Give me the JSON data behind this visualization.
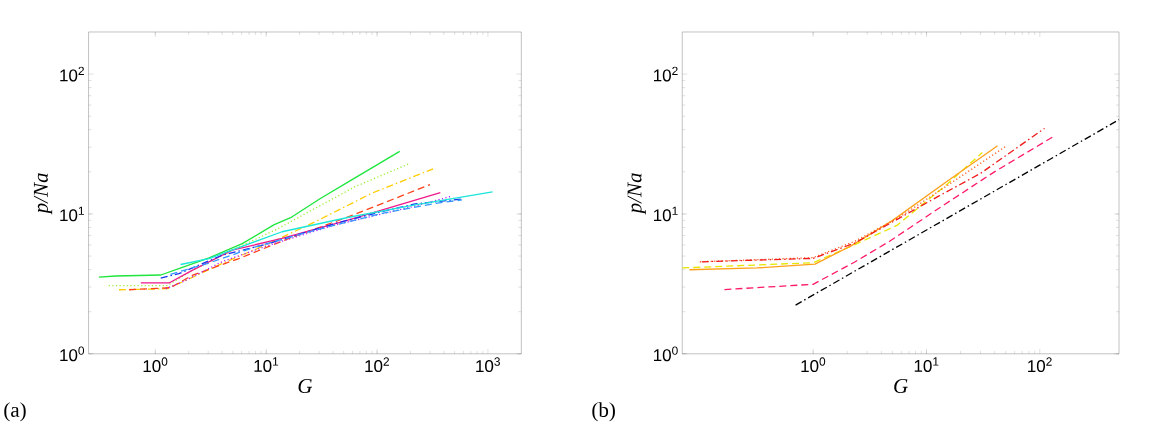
{
  "chart_data": [
    {
      "type": "line",
      "xlabel": "G",
      "ylabel": "p/Na",
      "annotations": [
        "(a)"
      ],
      "log": "xy",
      "xlim": [
        0.25,
        2000
      ],
      "ylim": [
        1,
        200
      ],
      "xticks": [
        {
          "value": 1,
          "label": "10$^{0}$"
        },
        {
          "value": 10,
          "label": "10$^{1}$"
        },
        {
          "value": 100,
          "label": "10$^{2}$"
        },
        {
          "value": 1000,
          "label": "10$^{3}$"
        }
      ],
      "yticks": [
        {
          "value": 1,
          "label": "10$^{0}$"
        },
        {
          "value": 10,
          "label": "10$^{1}$"
        },
        {
          "value": 100,
          "label": "10$^{2}$"
        }
      ],
      "series": [
        {
          "color": "#1ee63c",
          "line_style": "solid",
          "x": [
            0.31,
            0.44,
            1.12,
            1.63,
            3.05,
            6.08,
            11.7,
            16.6,
            30.8,
            59.5,
            160
          ],
          "values": [
            3.54,
            3.6,
            3.66,
            4.06,
            4.85,
            6.13,
            8.35,
            9.4,
            12.9,
            17.6,
            28.0
          ]
        },
        {
          "color": "#99f033",
          "line_style": "dotted",
          "x": [
            0.38,
            1.28,
            2.15,
            5.68,
            12.1,
            27.8,
            63.8,
            193
          ],
          "values": [
            3.07,
            3.07,
            3.95,
            5.82,
            7.67,
            11.0,
            15.7,
            22.8
          ]
        },
        {
          "color": "#ffcc00",
          "line_style": "dashdot",
          "x": [
            0.47,
            1.28,
            1.75,
            4.01,
            10.6,
            27.8,
            90.2,
            320
          ],
          "values": [
            2.87,
            2.92,
            3.26,
            4.42,
            6.15,
            8.81,
            14.1,
            21.0
          ]
        },
        {
          "color": "#ff4019",
          "line_style": "dashed",
          "x": [
            0.58,
            1.37,
            2.15,
            5.68,
            16.0,
            55.6,
            300
          ],
          "values": [
            2.87,
            2.97,
            3.64,
            4.8,
            6.68,
            9.56,
            16.2
          ]
        },
        {
          "color": "#f0198c",
          "line_style": "solid",
          "x": [
            0.74,
            1.33,
            2.15,
            4.94,
            13.9,
            55.6,
            372
          ],
          "values": [
            3.21,
            3.21,
            3.95,
            5.51,
            6.68,
            9.06,
            14.2
          ]
        },
        {
          "color": "#b31aff",
          "line_style": "dotted",
          "x": [
            1.24,
            1.75,
            4.01,
            10.6,
            42.1,
            221,
            457
          ],
          "values": [
            2.92,
            3.26,
            4.56,
            5.98,
            8.35,
            11.4,
            13.3
          ]
        },
        {
          "color": "#1a33f0",
          "line_style": "dashdot",
          "x": [
            1.12,
            1.63,
            4.01,
            10.6,
            42.1,
            111,
            221,
            583
          ],
          "values": [
            3.48,
            3.74,
            5.07,
            6.15,
            8.57,
            10.4,
            11.8,
            12.8
          ]
        },
        {
          "color": "#3399ff",
          "line_style": "dashed",
          "x": [
            1.37,
            3.05,
            8.01,
            27.8,
            111,
            335,
            583
          ],
          "values": [
            3.7,
            4.46,
            5.82,
            7.67,
            10.1,
            11.9,
            12.6
          ]
        },
        {
          "color": "#1ae6d9",
          "line_style": "solid",
          "x": [
            1.69,
            3.05,
            13.9,
            55.6,
            221,
            1100
          ],
          "values": [
            4.35,
            4.8,
            7.46,
            9.47,
            11.6,
            14.4
          ]
        }
      ]
    },
    {
      "type": "line",
      "xlabel": "G",
      "ylabel": "p/Na",
      "annotations": [
        "(b)"
      ],
      "log": "xy",
      "xlim": [
        0.07,
        500
      ],
      "ylim": [
        1,
        200
      ],
      "xticks": [
        {
          "value": 1,
          "label": "10$^{0}$"
        },
        {
          "value": 10,
          "label": "10$^{1}$"
        },
        {
          "value": 100,
          "label": "10$^{2}$"
        }
      ],
      "yticks": [
        {
          "value": 1,
          "label": "10$^{0}$"
        },
        {
          "value": 10,
          "label": "10$^{1}$"
        },
        {
          "value": 100,
          "label": "10$^{2}$"
        }
      ],
      "series": [
        {
          "color": "#e6e600",
          "line_style": "dashed",
          "x": [
            0.07,
            1.0,
            2.18,
            5.49,
            14.8,
            31.1
          ],
          "values": [
            4.11,
            4.48,
            5.89,
            8.28,
            16.0,
            27.5
          ]
        },
        {
          "color": "#ffa01a",
          "line_style": "solid",
          "x": [
            0.081,
            0.32,
            1.04,
            2.18,
            5.07,
            14.7,
            42.4
          ],
          "values": [
            3.99,
            4.11,
            4.38,
            5.94,
            9.03,
            16.8,
            30.7
          ]
        },
        {
          "color": "#ff5a1a",
          "line_style": "dotted",
          "x": [
            0.1,
            1.0,
            2.35,
            5.89,
            13.8,
            51
          ],
          "values": [
            4.55,
            4.87,
            6.4,
            9.58,
            15.1,
            30.7
          ]
        },
        {
          "color": "#f01a1a",
          "line_style": "dashdot",
          "x": [
            0.104,
            1.0,
            2.35,
            12.8,
            30.0,
            110
          ],
          "values": [
            4.55,
            4.81,
            6.22,
            13.4,
            19.5,
            40.9
          ]
        },
        {
          "color": "#ff1a66",
          "line_style": "dashed",
          "x": [
            0.165,
            1.0,
            2.35,
            4.76,
            13.8,
            39.8,
            130
          ],
          "values": [
            2.88,
            3.14,
            4.55,
            6.4,
            11.4,
            20.0,
            35.5
          ]
        },
        {
          "color": "#000000",
          "line_style": "dashdot",
          "x": [
            0.7,
            500
          ],
          "values": [
            2.23,
            47.2
          ]
        }
      ]
    }
  ]
}
